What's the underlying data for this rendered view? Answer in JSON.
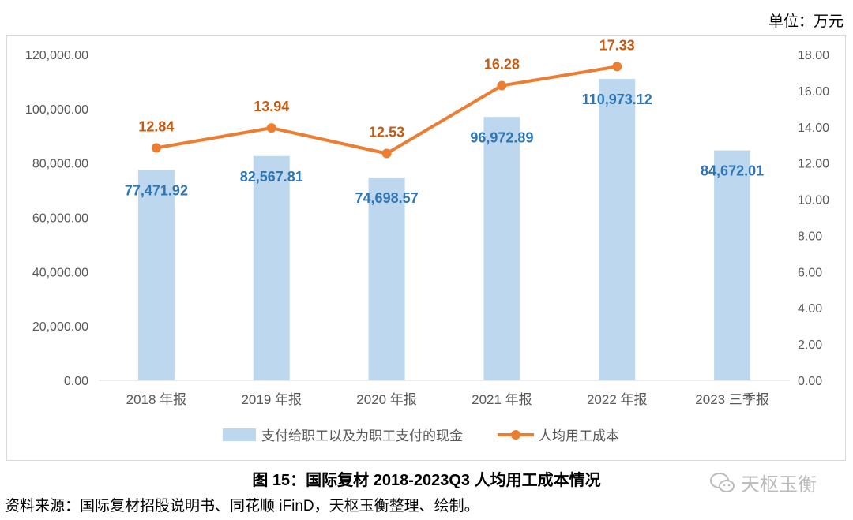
{
  "unit_label": "单位：万元",
  "caption": "图 15：国际复材 2018-2023Q3 人均用工成本情况",
  "source": "资料来源：国际复材招股说明书、同花顺 iFinD，天枢玉衡整理、绘制。",
  "watermark": "天枢玉衡",
  "chart_data": {
    "type": "bar+line",
    "categories": [
      "2018 年报",
      "2019 年报",
      "2020 年报",
      "2021 年报",
      "2022 年报",
      "2023 三季报"
    ],
    "series": [
      {
        "name": "支付给职工以及为职工支付的现金",
        "type": "bar",
        "axis": "left",
        "color": "#bdd7ee",
        "label_color": "#2e75b6",
        "values": [
          77471.92,
          82567.81,
          74698.57,
          96972.89,
          110973.12,
          84672.01
        ],
        "labels": [
          "77,471.92",
          "82,567.81",
          "74,698.57",
          "96,972.89",
          "110,973.12",
          "84,672.01"
        ]
      },
      {
        "name": "人均用工成本",
        "type": "line",
        "axis": "right",
        "color": "#ed7d31",
        "label_color": "#c55a11",
        "values": [
          12.84,
          13.94,
          12.53,
          16.28,
          17.33,
          null
        ],
        "labels": [
          "12.84",
          "13.94",
          "12.53",
          "16.28",
          "17.33",
          ""
        ]
      }
    ],
    "y_left": {
      "min": 0,
      "max": 120000,
      "ticks": [
        "0.00",
        "20,000.00",
        "40,000.00",
        "60,000.00",
        "80,000.00",
        "100,000.00",
        "120,000.00"
      ]
    },
    "y_right": {
      "min": 0,
      "max": 18,
      "ticks": [
        "0.00",
        "2.00",
        "4.00",
        "6.00",
        "8.00",
        "10.00",
        "12.00",
        "14.00",
        "16.00",
        "18.00"
      ]
    },
    "grid": false,
    "legend": "bottom"
  }
}
